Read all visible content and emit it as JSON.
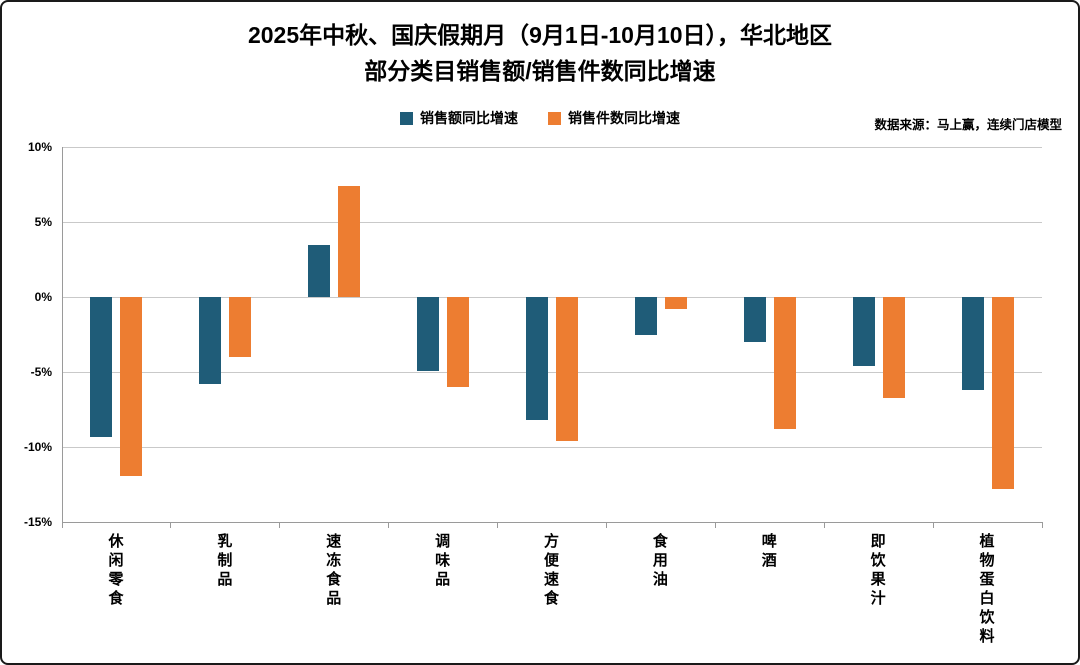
{
  "title": {
    "line1": "2025年中秋、国庆假期月（9月1日-10月10日），华北地区",
    "line2": "部分类目销售额/销售件数同比增速"
  },
  "source_note": "数据来源：马上赢，连续门店模型",
  "legend": {
    "items": [
      {
        "label": "销售额同比增速",
        "color": "#1f5c78"
      },
      {
        "label": "销售件数同比增速",
        "color": "#ed7d31"
      }
    ]
  },
  "chart_data": {
    "type": "bar",
    "title": "2025年中秋、国庆假期月（9月1日-10月10日），华北地区 部分类目销售额/销售件数同比增速",
    "categories": [
      "休闲零食",
      "乳制品",
      "速冻食品",
      "调味品",
      "方便速食",
      "食用油",
      "啤酒",
      "即饮果汁",
      "植物蛋白饮料"
    ],
    "series": [
      {
        "name": "销售额同比增速",
        "color": "#1f5c78",
        "values": [
          -9.3,
          -5.8,
          3.5,
          -4.9,
          -8.2,
          -2.5,
          -3.0,
          -4.6,
          -6.2
        ]
      },
      {
        "name": "销售件数同比增速",
        "color": "#ed7d31",
        "values": [
          -11.9,
          -4.0,
          7.4,
          -6.0,
          -9.6,
          -0.8,
          -8.8,
          -6.7,
          -12.8
        ]
      }
    ],
    "xlabel": "",
    "ylabel": "",
    "ylim": [
      -15,
      10
    ],
    "ytick_step": 5,
    "ytick_values": [
      10,
      5,
      0,
      -5,
      -10,
      -15
    ],
    "ytick_labels": [
      "10%",
      "5%",
      "0%",
      "-5%",
      "-10%",
      "-15%"
    ],
    "grid": true,
    "legend_position": "top"
  },
  "colors": {
    "grid": "#c9c9c9",
    "axis": "#9a9a9a",
    "text": "#000000",
    "background": "#ffffff",
    "border": "#1a1a1a"
  }
}
